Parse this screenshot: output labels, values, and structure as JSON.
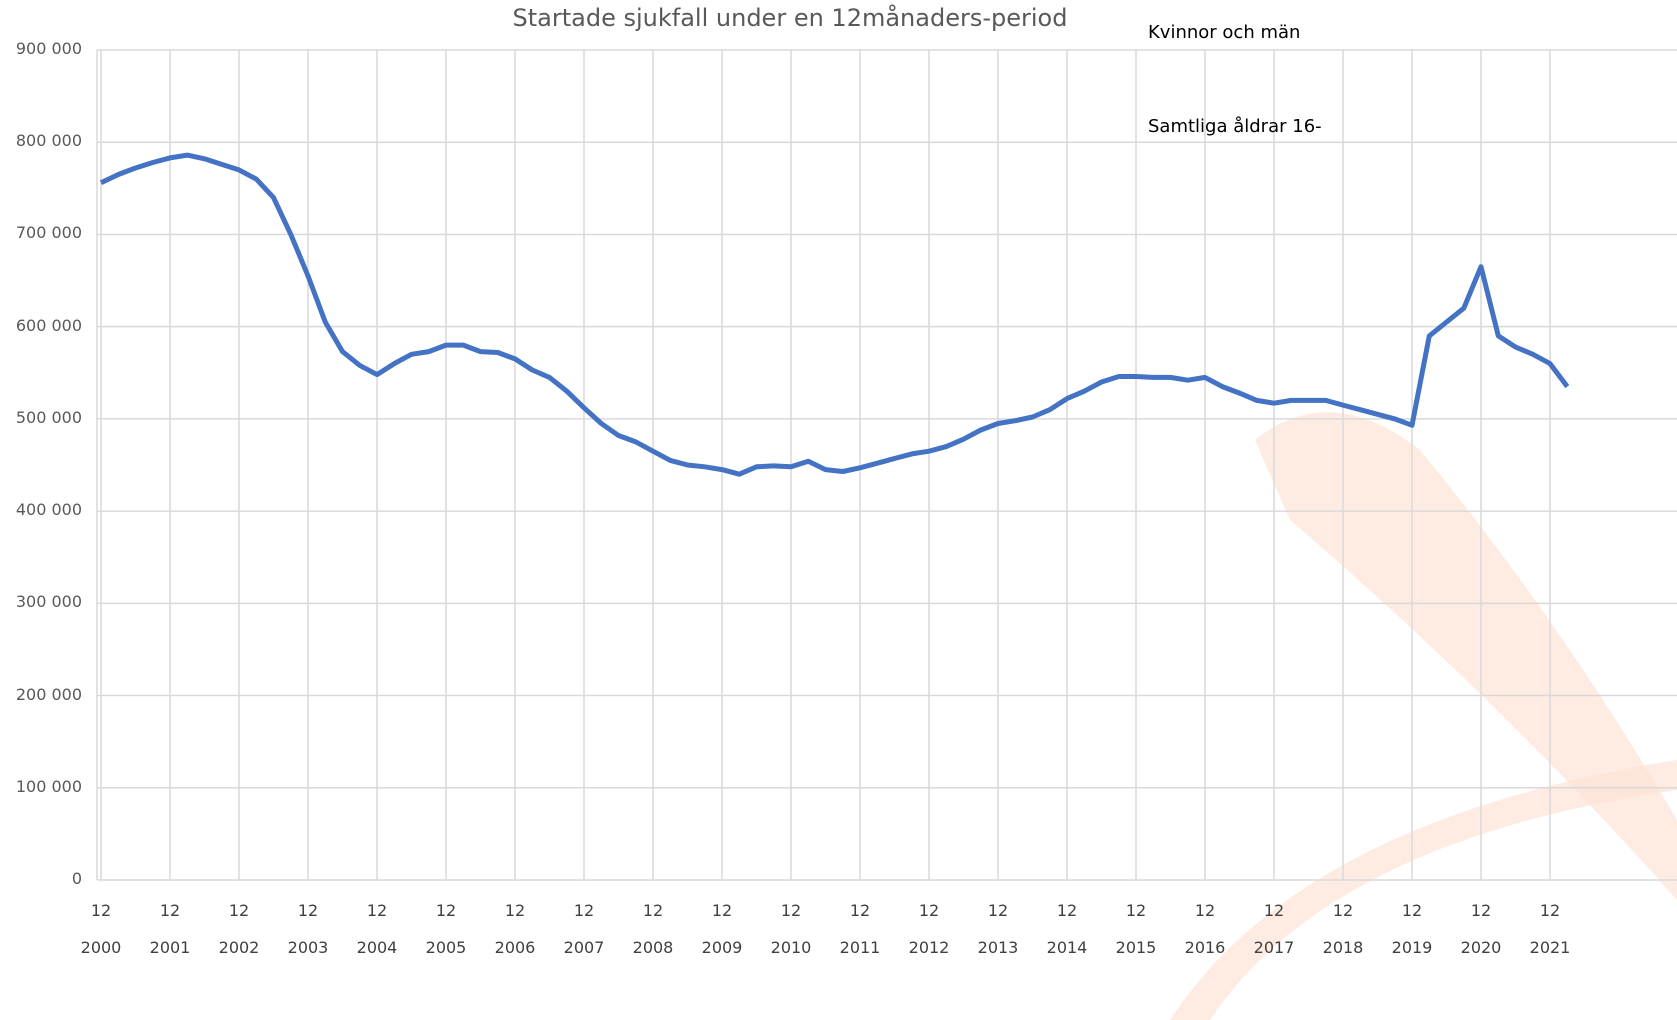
{
  "chart_data": {
    "type": "line",
    "title": "Startade sjukfall under en 12månaders-period",
    "annotations": [
      "Kvinnor och män",
      "Samtliga åldrar 16-"
    ],
    "categories": [
      "12\n2000",
      null,
      null,
      null,
      "12\n2001",
      null,
      null,
      null,
      "12\n2002",
      null,
      null,
      null,
      "12\n2003",
      null,
      null,
      null,
      "12\n2004",
      null,
      null,
      null,
      "12\n2005",
      null,
      null,
      null,
      "12\n2006",
      null,
      null,
      null,
      "12\n2007",
      null,
      null,
      null,
      "12\n2008",
      null,
      null,
      null,
      "12\n2009",
      null,
      null,
      null,
      "12\n2010",
      null,
      null,
      null,
      "12\n2011",
      null,
      null,
      null,
      "12\n2012",
      null,
      null,
      null,
      "12\n2013",
      null,
      null,
      null,
      "12\n2014",
      null,
      null,
      null,
      "12\n2015",
      null,
      null,
      null,
      "12\n2016",
      null,
      null,
      null,
      "12\n2017",
      null,
      null,
      null,
      "12\n2018",
      null,
      null,
      null,
      "12\n2019",
      null,
      null,
      null,
      "12\n2020",
      null,
      null,
      null,
      "12\n2021",
      null
    ],
    "series": [
      {
        "color": "#4472c4",
        "values": [
          756000,
          765000,
          772000,
          778000,
          783000,
          786000,
          782000,
          776000,
          770000,
          760000,
          740000,
          700000,
          655000,
          605000,
          573000,
          558000,
          548000,
          560000,
          570000,
          573000,
          580000,
          580000,
          573000,
          572000,
          565000,
          553000,
          545000,
          530000,
          512000,
          495000,
          482000,
          475000,
          465000,
          455000,
          450000,
          448000,
          445000,
          440000,
          448000,
          449000,
          448000,
          454000,
          445000,
          443000,
          447000,
          452000,
          457000,
          462000,
          465000,
          470000,
          478000,
          488000,
          495000,
          498000,
          502000,
          510000,
          522000,
          530000,
          540000,
          546000,
          546000,
          545000,
          545000,
          542000,
          545000,
          535000,
          528000,
          520000,
          517000,
          520000,
          520000,
          520000,
          515000,
          510000,
          505000,
          500000,
          493000,
          590000,
          605000,
          620000,
          665000,
          590000,
          578000,
          570000,
          560000,
          535000
        ]
      }
    ],
    "ylim": [
      0,
      900000
    ],
    "yticks": [
      0,
      {
        "value": 100000,
        "label": "100 000"
      },
      {
        "value": 200000,
        "label": "200 000"
      },
      {
        "value": 300000,
        "label": "300 000"
      },
      {
        "value": 400000,
        "label": "400 000"
      },
      {
        "value": 500000,
        "label": "500 000"
      },
      {
        "value": 600000,
        "label": "600 000"
      },
      {
        "value": 700000,
        "label": "700 000"
      },
      {
        "value": 800000,
        "label": "800 000"
      },
      {
        "value": 900000,
        "label": "900 000"
      }
    ],
    "grid": true
  }
}
